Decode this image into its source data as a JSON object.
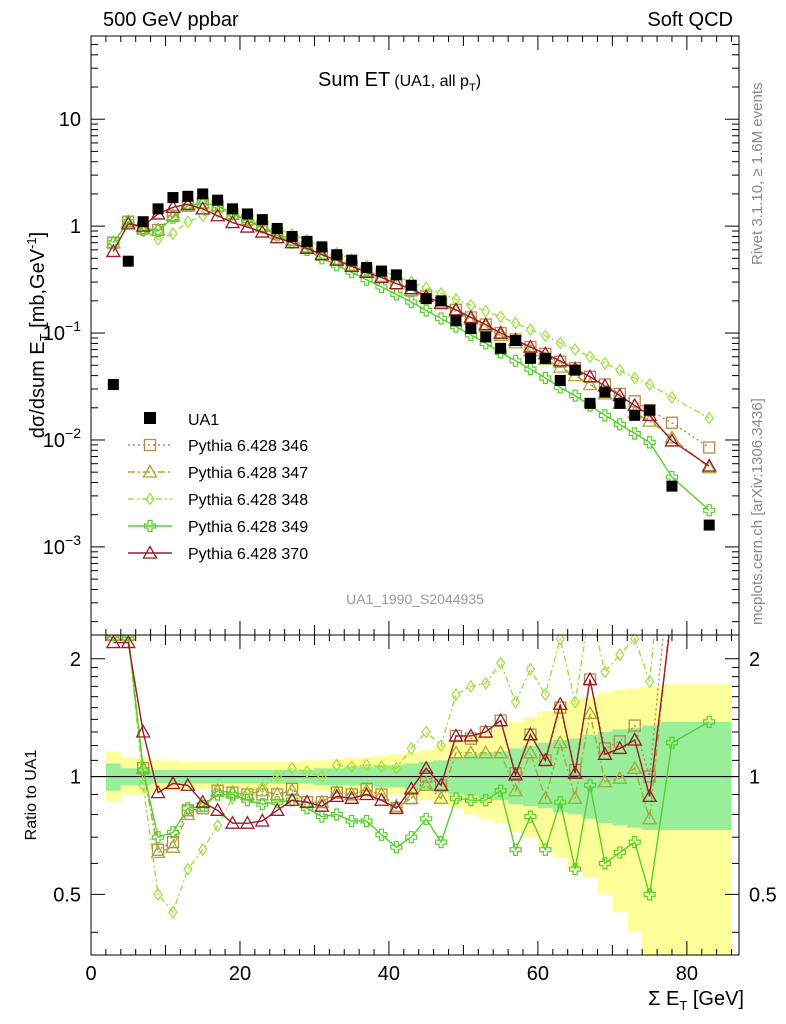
{
  "header": {
    "left": "500 GeV ppbar",
    "right": "Soft QCD"
  },
  "side_labels": {
    "rivet": "Rivet 3.1.10, ≥ 1.6M events",
    "mcplots": "mcplots.cern.ch [arXiv:1306.3436]"
  },
  "chart_data": {
    "type": "line",
    "title": "Sum ET",
    "subtitle": "(UA1, all p",
    "subtitle_sub": "T",
    "subtitle_end": ")",
    "analysis_id": "UA1_1990_S2044935",
    "xlabel": "Σ E",
    "xlabel_sub": "T",
    "xlabel_end": " [GeV]",
    "ylabel": "dσ/dsum E",
    "ylabel_sub": "T",
    "ylabel_end": " [mb,GeV",
    "ylabel_sup": "-1",
    "ylabel_close": "]",
    "ratio_ylabel": "Ratio to UA1",
    "xlim": [
      0,
      87
    ],
    "ylim": [
      0.00015,
      60
    ],
    "yscale": "log",
    "ratio_ylim": [
      0.35,
      2.3
    ],
    "xticks": [
      "0",
      "20",
      "40",
      "60",
      "80"
    ],
    "yticks_main": [
      {
        "value": 10,
        "base": "10",
        "exp": ""
      },
      {
        "value": 1,
        "base": "1",
        "exp": ""
      },
      {
        "value": 0.1,
        "base": "10",
        "exp": "−1"
      },
      {
        "value": 0.01,
        "base": "10",
        "exp": "−2"
      },
      {
        "value": 0.001,
        "base": "10",
        "exp": "−3"
      }
    ],
    "yticks_ratio": [
      "0.5",
      "1",
      "2"
    ],
    "x": [
      3,
      5,
      7,
      9,
      11,
      13,
      15,
      17,
      19,
      21,
      23,
      25,
      27,
      29,
      31,
      33,
      35,
      37,
      39,
      41,
      43,
      45,
      47,
      49,
      51,
      53,
      55,
      57,
      59,
      61,
      63,
      65,
      67,
      69,
      71,
      73,
      75,
      78,
      83
    ],
    "data_series": {
      "name": "UA1",
      "values": [
        0.033,
        0.47,
        1.1,
        1.45,
        1.85,
        1.9,
        2.0,
        1.75,
        1.45,
        1.3,
        1.15,
        0.95,
        0.8,
        0.72,
        0.64,
        0.54,
        0.48,
        0.41,
        0.38,
        0.35,
        0.28,
        0.21,
        0.2,
        0.13,
        0.11,
        0.092,
        0.072,
        0.085,
        0.058,
        0.058,
        0.036,
        0.045,
        0.022,
        0.028,
        0.022,
        0.017,
        0.019,
        0.0037,
        0.0016
      ],
      "color": "#000000"
    },
    "series": [
      {
        "name": "Pythia 6.428 346",
        "color": "#b58a4e",
        "marker": "square",
        "dash": "2,3",
        "values": [
          0.7,
          1.1,
          0.95,
          0.92,
          1.25,
          1.55,
          1.65,
          1.55,
          1.3,
          1.15,
          1.0,
          0.85,
          0.74,
          0.64,
          0.55,
          0.49,
          0.43,
          0.38,
          0.34,
          0.29,
          0.25,
          0.22,
          0.19,
          0.165,
          0.14,
          0.12,
          0.1,
          0.087,
          0.074,
          0.064,
          0.054,
          0.047,
          0.039,
          0.033,
          0.027,
          0.023,
          0.019,
          0.0145,
          0.0085
        ]
      },
      {
        "name": "Pythia 6.428 347",
        "color": "#a8a832",
        "marker": "triangle",
        "dash": "7,3,2,3",
        "values": [
          0.7,
          1.1,
          0.95,
          0.92,
          1.25,
          1.55,
          1.65,
          1.55,
          1.3,
          1.15,
          1.0,
          0.85,
          0.74,
          0.64,
          0.55,
          0.49,
          0.43,
          0.38,
          0.34,
          0.29,
          0.25,
          0.22,
          0.19,
          0.16,
          0.135,
          0.115,
          0.095,
          0.081,
          0.068,
          0.057,
          0.048,
          0.04,
          0.033,
          0.027,
          0.022,
          0.018,
          0.015,
          0.0105,
          0.0055
        ]
      },
      {
        "name": "Pythia 6.428 348",
        "color": "#9ee03c",
        "marker": "diamond",
        "dash": "6,3,2,3",
        "values": [
          0.7,
          1.1,
          0.9,
          0.75,
          0.85,
          1.1,
          1.25,
          1.35,
          1.28,
          1.18,
          1.08,
          0.95,
          0.84,
          0.74,
          0.64,
          0.56,
          0.49,
          0.43,
          0.38,
          0.34,
          0.3,
          0.265,
          0.235,
          0.207,
          0.182,
          0.16,
          0.142,
          0.124,
          0.108,
          0.094,
          0.081,
          0.07,
          0.06,
          0.052,
          0.045,
          0.038,
          0.033,
          0.025,
          0.016
        ]
      },
      {
        "name": "Pythia 6.428 349",
        "color": "#55d12a",
        "marker": "cross",
        "dash": "",
        "values": [
          0.7,
          1.1,
          0.92,
          0.9,
          1.2,
          1.55,
          1.65,
          1.55,
          1.3,
          1.13,
          0.97,
          0.82,
          0.7,
          0.6,
          0.5,
          0.43,
          0.37,
          0.315,
          0.27,
          0.23,
          0.195,
          0.163,
          0.137,
          0.115,
          0.096,
          0.08,
          0.066,
          0.055,
          0.046,
          0.038,
          0.031,
          0.026,
          0.021,
          0.017,
          0.014,
          0.0115,
          0.0095,
          0.0045,
          0.0022
        ]
      },
      {
        "name": "Pythia 6.428 370",
        "color": "#9b1b2a",
        "marker": "triangle",
        "dash": "",
        "values": [
          0.58,
          1.05,
          1.0,
          1.3,
          1.5,
          1.6,
          1.45,
          1.25,
          1.08,
          0.98,
          0.88,
          0.78,
          0.7,
          0.62,
          0.54,
          0.48,
          0.42,
          0.37,
          0.33,
          0.29,
          0.26,
          0.22,
          0.19,
          0.165,
          0.14,
          0.12,
          0.1,
          0.086,
          0.074,
          0.064,
          0.055,
          0.046,
          0.039,
          0.032,
          0.026,
          0.021,
          0.017,
          0.0098,
          0.0057
        ]
      }
    ],
    "ratio_series": [
      {
        "name": "Pythia 6.428 346",
        "values": [
          2.3,
          2.3,
          1.05,
          0.65,
          0.68,
          0.82,
          0.83,
          0.92,
          0.91,
          0.9,
          0.9,
          0.9,
          0.93,
          0.86,
          0.86,
          0.91,
          0.9,
          0.93,
          0.9,
          0.83,
          0.88,
          1.0,
          0.95,
          1.27,
          1.25,
          1.3,
          1.39,
          1.02,
          1.28,
          1.1,
          1.5,
          1.04,
          1.77,
          1.18,
          1.23,
          1.35,
          1.0,
          3.9,
          5.3
        ]
      },
      {
        "name": "Pythia 6.428 347",
        "values": [
          2.3,
          2.3,
          1.05,
          0.64,
          0.66,
          0.8,
          0.84,
          0.92,
          0.91,
          0.9,
          0.92,
          0.9,
          0.92,
          0.86,
          0.86,
          0.91,
          0.9,
          0.92,
          0.9,
          0.84,
          0.88,
          0.95,
          0.88,
          1.15,
          1.15,
          1.15,
          1.15,
          0.92,
          1.15,
          0.88,
          1.22,
          0.88,
          1.45,
          0.97,
          0.99,
          1.05,
          0.78,
          2.8,
          3.5
        ]
      },
      {
        "name": "Pythia 6.428 348",
        "values": [
          2.3,
          2.3,
          0.95,
          0.5,
          0.45,
          0.58,
          0.65,
          0.75,
          0.88,
          0.91,
          0.94,
          1.0,
          1.05,
          1.03,
          1.0,
          1.07,
          1.06,
          1.07,
          1.06,
          1.05,
          1.18,
          1.3,
          1.2,
          1.62,
          1.7,
          1.73,
          1.95,
          1.55,
          1.88,
          1.62,
          2.25,
          1.55,
          2.7,
          1.85,
          2.05,
          2.25,
          1.75,
          6.8,
          10.0
        ]
      },
      {
        "name": "Pythia 6.428 349",
        "values": [
          2.3,
          2.3,
          1.04,
          0.7,
          0.72,
          0.83,
          0.84,
          0.9,
          0.9,
          0.87,
          0.85,
          0.86,
          0.87,
          0.83,
          0.79,
          0.8,
          0.77,
          0.77,
          0.71,
          0.66,
          0.7,
          0.78,
          0.68,
          0.88,
          0.87,
          0.87,
          0.92,
          0.65,
          0.79,
          0.65,
          0.86,
          0.58,
          0.95,
          0.6,
          0.64,
          0.68,
          0.5,
          1.22,
          1.38
        ]
      },
      {
        "name": "Pythia 6.428 370",
        "values": [
          2.2,
          2.2,
          1.3,
          0.91,
          0.96,
          0.95,
          0.86,
          0.82,
          0.76,
          0.76,
          0.77,
          0.82,
          0.87,
          0.86,
          0.84,
          0.89,
          0.88,
          0.9,
          0.87,
          0.83,
          0.93,
          1.05,
          0.95,
          1.27,
          1.27,
          1.3,
          1.39,
          1.01,
          1.28,
          1.1,
          1.53,
          1.02,
          1.77,
          1.14,
          1.18,
          1.24,
          0.89,
          2.65,
          3.6
        ]
      }
    ],
    "ratio_band_yellow": [
      [
        0.86,
        1.16
      ],
      [
        0.9,
        1.12
      ],
      [
        0.9,
        1.12
      ],
      [
        0.92,
        1.1
      ],
      [
        0.92,
        1.1
      ],
      [
        0.93,
        1.09
      ],
      [
        0.93,
        1.09
      ],
      [
        0.93,
        1.09
      ],
      [
        0.93,
        1.09
      ],
      [
        0.93,
        1.09
      ],
      [
        0.93,
        1.09
      ],
      [
        0.93,
        1.09
      ],
      [
        0.93,
        1.09
      ],
      [
        0.92,
        1.1
      ],
      [
        0.92,
        1.1
      ],
      [
        0.92,
        1.11
      ],
      [
        0.91,
        1.12
      ],
      [
        0.91,
        1.12
      ],
      [
        0.9,
        1.13
      ],
      [
        0.9,
        1.14
      ],
      [
        0.89,
        1.15
      ],
      [
        0.87,
        1.17
      ],
      [
        0.85,
        1.2
      ],
      [
        0.83,
        1.23
      ],
      [
        0.8,
        1.27
      ],
      [
        0.78,
        1.3
      ],
      [
        0.76,
        1.33
      ],
      [
        0.72,
        1.38
      ],
      [
        0.7,
        1.42
      ],
      [
        0.66,
        1.47
      ],
      [
        0.62,
        1.52
      ],
      [
        0.58,
        1.57
      ],
      [
        0.55,
        1.6
      ],
      [
        0.5,
        1.64
      ],
      [
        0.45,
        1.67
      ],
      [
        0.4,
        1.68
      ],
      [
        0.35,
        1.7
      ],
      [
        0.35,
        1.72
      ],
      [
        0.35,
        1.72
      ]
    ],
    "ratio_band_green": [
      [
        0.92,
        1.08
      ],
      [
        0.95,
        1.05
      ],
      [
        0.95,
        1.05
      ],
      [
        0.96,
        1.04
      ],
      [
        0.96,
        1.04
      ],
      [
        0.96,
        1.04
      ],
      [
        0.96,
        1.04
      ],
      [
        0.96,
        1.04
      ],
      [
        0.96,
        1.04
      ],
      [
        0.96,
        1.04
      ],
      [
        0.96,
        1.04
      ],
      [
        0.96,
        1.04
      ],
      [
        0.96,
        1.04
      ],
      [
        0.96,
        1.04
      ],
      [
        0.95,
        1.05
      ],
      [
        0.95,
        1.05
      ],
      [
        0.95,
        1.06
      ],
      [
        0.95,
        1.06
      ],
      [
        0.94,
        1.07
      ],
      [
        0.94,
        1.07
      ],
      [
        0.93,
        1.08
      ],
      [
        0.92,
        1.09
      ],
      [
        0.91,
        1.1
      ],
      [
        0.9,
        1.12
      ],
      [
        0.89,
        1.14
      ],
      [
        0.88,
        1.15
      ],
      [
        0.87,
        1.16
      ],
      [
        0.85,
        1.18
      ],
      [
        0.84,
        1.2
      ],
      [
        0.83,
        1.22
      ],
      [
        0.81,
        1.24
      ],
      [
        0.8,
        1.25
      ],
      [
        0.78,
        1.28
      ],
      [
        0.76,
        1.3
      ],
      [
        0.75,
        1.32
      ],
      [
        0.74,
        1.33
      ],
      [
        0.73,
        1.35
      ],
      [
        0.73,
        1.38
      ],
      [
        0.73,
        1.38
      ]
    ]
  }
}
